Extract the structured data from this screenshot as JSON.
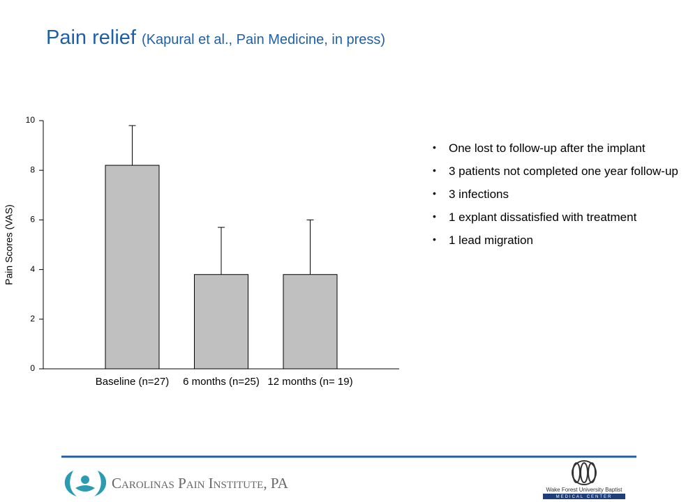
{
  "title": "Pain relief",
  "subtitle": "(Kapural et al., Pain Medicine, in press)",
  "bullets": [
    "One lost to follow-up after the implant",
    "3 patients not completed one year follow-up",
    "3 infections",
    "1 explant dissatisfied with treatment",
    "1 lead migration"
  ],
  "footer": {
    "left_logo": "Carolinas Pain Institute, PA",
    "right_logo_line1": "Wake Forest University Baptist",
    "right_logo_line2": "MEDICAL CENTER"
  },
  "chart_data": {
    "type": "bar",
    "y_label": "Pain Scores (VAS)",
    "categories": [
      "Baseline (n=27)",
      "6 months (n=25)",
      "12 months (n= 19)"
    ],
    "values": [
      8.2,
      3.8,
      3.8
    ],
    "errors": [
      1.6,
      1.9,
      2.2
    ],
    "color": "#c0c0c0",
    "ylim": [
      0,
      10
    ],
    "yticks": [
      0,
      2,
      4,
      6,
      8,
      10
    ]
  }
}
